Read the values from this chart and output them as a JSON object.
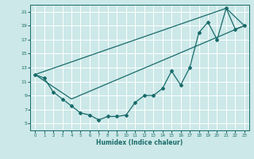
{
  "xlabel": "Humidex (Indice chaleur)",
  "xlim": [
    -0.5,
    23.5
  ],
  "ylim": [
    4,
    22
  ],
  "yticks": [
    5,
    7,
    9,
    11,
    13,
    15,
    17,
    19,
    21
  ],
  "xticks": [
    0,
    1,
    2,
    3,
    4,
    5,
    6,
    7,
    8,
    9,
    10,
    11,
    12,
    13,
    14,
    15,
    16,
    17,
    18,
    19,
    20,
    21,
    22,
    23
  ],
  "bg_color": "#cce8e8",
  "line_color": "#1a6b6b",
  "grid_color": "#ffffff",
  "line1_x": [
    0,
    1,
    2,
    3,
    4,
    5,
    6,
    7,
    8,
    9,
    10,
    11,
    12,
    13,
    14,
    15,
    16,
    17,
    18,
    19,
    20,
    21,
    22,
    23
  ],
  "line1_y": [
    12.0,
    11.5,
    9.5,
    8.5,
    7.5,
    6.5,
    6.2,
    5.5,
    6.0,
    6.0,
    6.2,
    8.0,
    9.0,
    9.0,
    10.0,
    12.5,
    10.5,
    13.0,
    18.0,
    19.5,
    17.0,
    21.5,
    18.5,
    19.0
  ],
  "line2_x": [
    0,
    21,
    23
  ],
  "line2_y": [
    12.0,
    21.5,
    19.0
  ],
  "line3_x": [
    0,
    4,
    23
  ],
  "line3_y": [
    12.0,
    8.5,
    19.0
  ]
}
